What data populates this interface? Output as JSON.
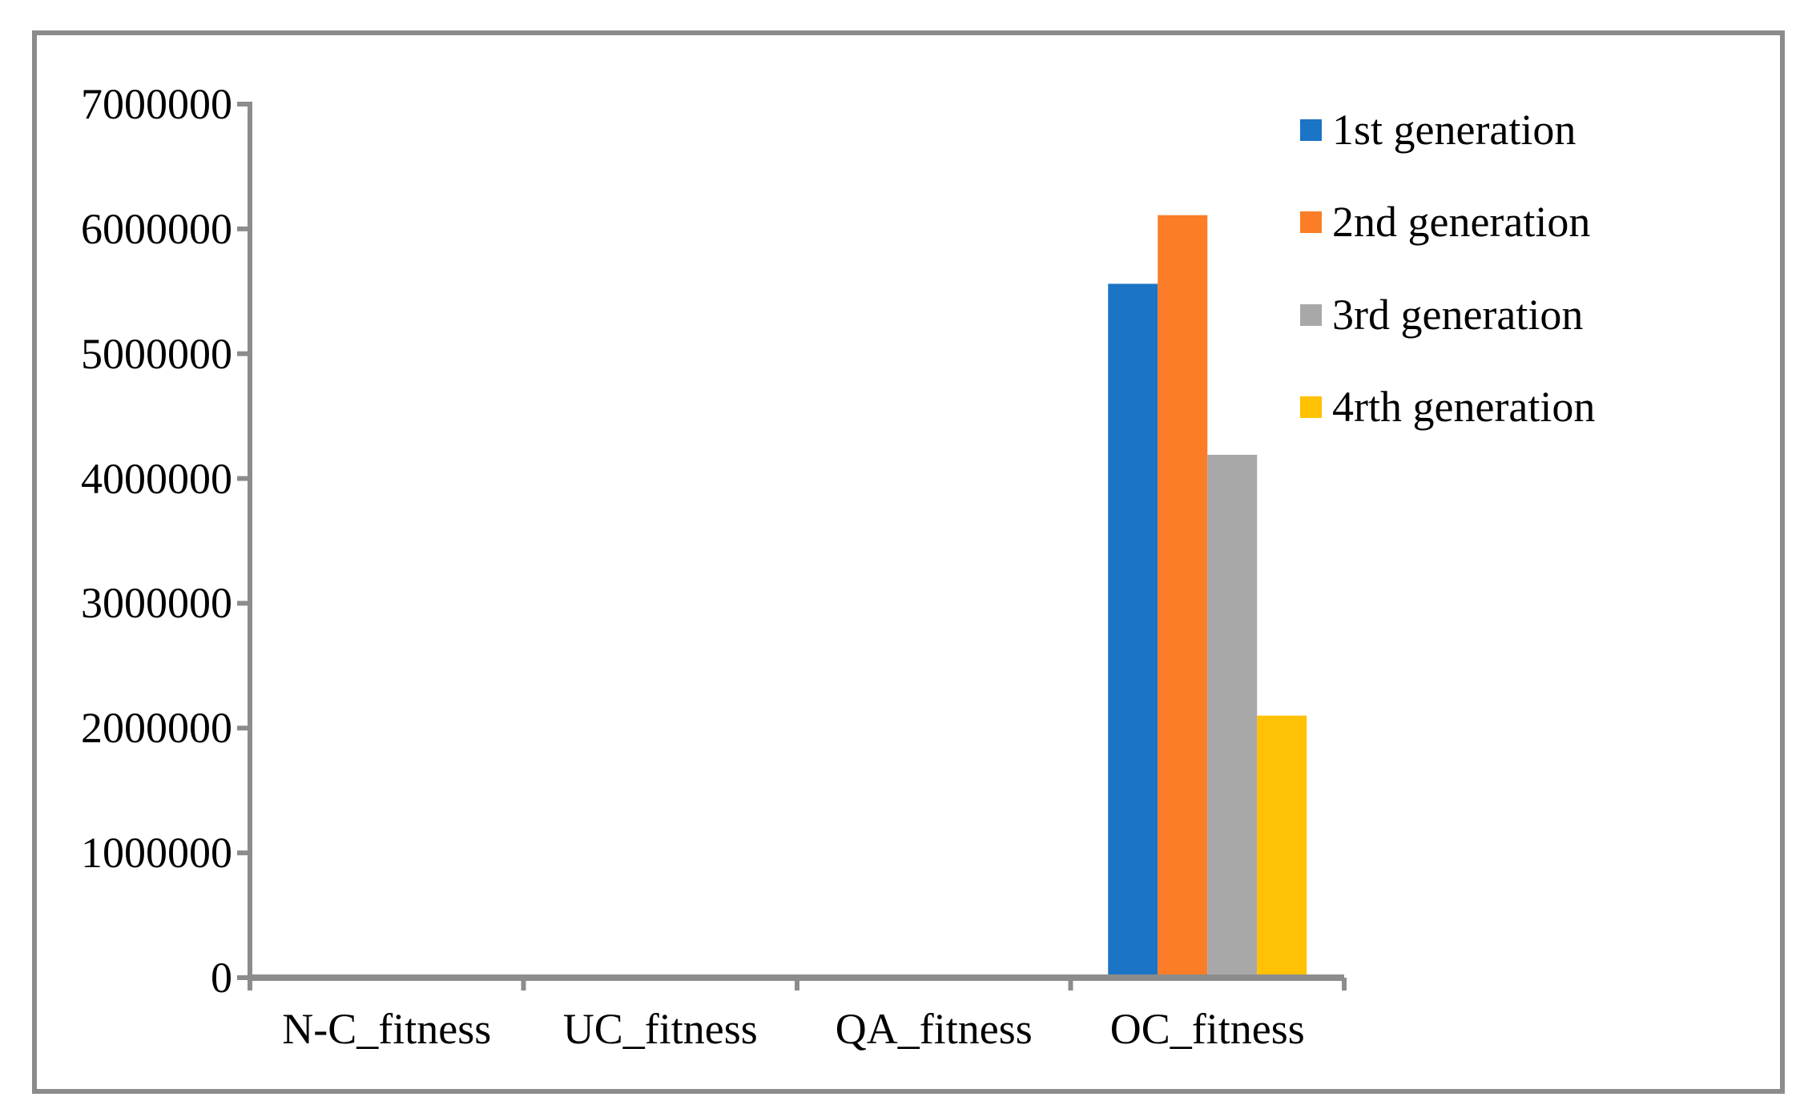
{
  "chart_data": {
    "type": "bar",
    "title": "",
    "xlabel": "",
    "ylabel": "",
    "categories": [
      "N-C_fitness",
      "UC_fitness",
      "QA_fitness",
      "OC_fitness"
    ],
    "series": [
      {
        "name": "1st generation",
        "color": "#1B74C5",
        "values": [
          0,
          0,
          0,
          5560000
        ]
      },
      {
        "name": "2nd generation",
        "color": "#FB7D27",
        "values": [
          0,
          0,
          0,
          6110000
        ]
      },
      {
        "name": "3rd generation",
        "color": "#A8A8A8",
        "values": [
          0,
          0,
          0,
          4190000
        ]
      },
      {
        "name": "4rth generation",
        "color": "#FFC104",
        "values": [
          0,
          0,
          0,
          2100000
        ]
      }
    ],
    "y_tick_labels": [
      "0",
      "1000000",
      "2000000",
      "3000000",
      "4000000",
      "5000000",
      "6000000",
      "7000000"
    ],
    "ylim": [
      0,
      7000000
    ],
    "y_tick_step": 1000000,
    "grid": false,
    "legend_position": "top-right",
    "axis_color": "#8C8C8C",
    "frame_color": "#8C8C8C"
  }
}
